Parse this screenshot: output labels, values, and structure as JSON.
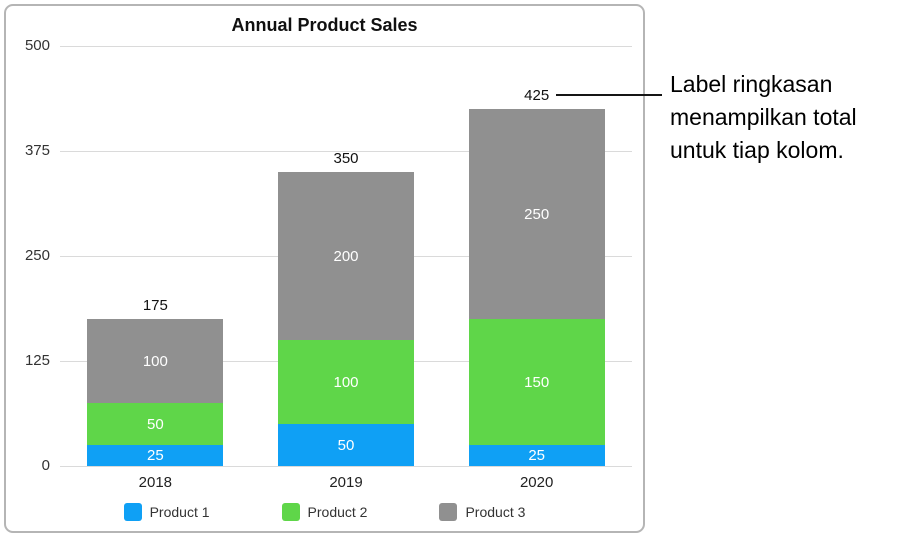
{
  "chart_data": {
    "type": "bar",
    "stacked": true,
    "title": "Annual Product Sales",
    "categories": [
      "2018",
      "2019",
      "2020"
    ],
    "series": [
      {
        "name": "Product 1",
        "color": "#0fa0f5",
        "values": [
          25,
          50,
          25
        ]
      },
      {
        "name": "Product 2",
        "color": "#5fd649",
        "values": [
          50,
          100,
          150
        ]
      },
      {
        "name": "Product 3",
        "color": "#909090",
        "values": [
          100,
          200,
          250
        ]
      }
    ],
    "totals": [
      175,
      350,
      425
    ],
    "y_ticks": [
      0,
      125,
      250,
      375,
      500
    ],
    "ylim": [
      0,
      500
    ],
    "xlabel": "",
    "ylabel": "",
    "grid": true,
    "legend_position": "bottom",
    "value_label_color": "#ffffff",
    "total_label_color": "#111111"
  },
  "annotation": {
    "text": "Label ringkasan menampilkan total untuk tiap kolom.",
    "lines": [
      "Label ringkasan",
      "menampilkan total",
      "untuk tiap kolom."
    ]
  }
}
